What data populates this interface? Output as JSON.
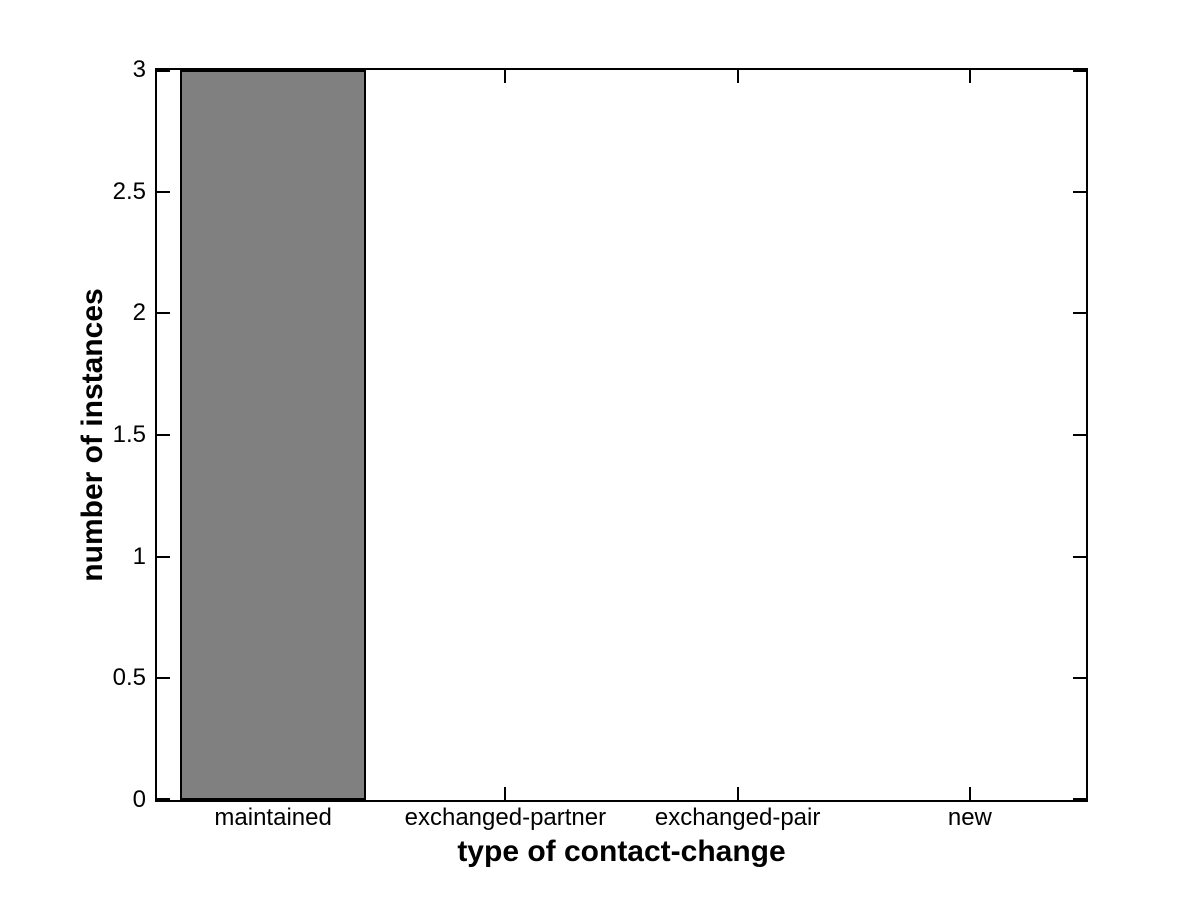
{
  "chart_data": {
    "type": "bar",
    "categories": [
      "maintained",
      "exchanged-partner",
      "exchanged-pair",
      "new"
    ],
    "values": [
      3,
      0,
      0,
      0
    ],
    "title": "",
    "xlabel": "type of contact-change",
    "ylabel": "number of instances",
    "ylim": [
      0,
      3
    ],
    "yticks": [
      0,
      0.5,
      1,
      1.5,
      2,
      2.5,
      3
    ],
    "ytick_labels": [
      "0",
      "0.5",
      "1",
      "1.5",
      "2",
      "2.5",
      "3"
    ],
    "bar_width_fraction": 0.8,
    "bar_fill_color": "#808080",
    "bar_edge_color": "#000000",
    "axis_color": "#000000",
    "background_color": "#ffffff",
    "grid": false,
    "legend": null,
    "box": true,
    "tick_direction": "in"
  }
}
